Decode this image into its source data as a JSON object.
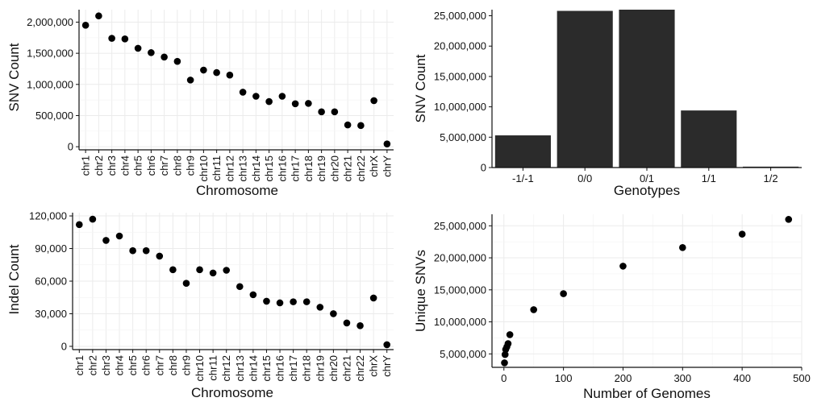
{
  "colors": {
    "marks": "#000000",
    "bars": "#2b2b2b",
    "axis": "#111111",
    "grid": "#ebebeb"
  },
  "chart_data": [
    {
      "id": "snv-by-chromosome",
      "type": "scatter",
      "title": "",
      "xlabel": "Chromosome",
      "ylabel": "SNV Count",
      "categories": [
        "chr1",
        "chr2",
        "chr3",
        "chr4",
        "chr5",
        "chr6",
        "chr7",
        "chr8",
        "chr9",
        "chr10",
        "chr11",
        "chr12",
        "chr13",
        "chr14",
        "chr15",
        "chr16",
        "chr17",
        "chr18",
        "chr19",
        "chr20",
        "chr21",
        "chr22",
        "chrX",
        "chrY"
      ],
      "values": [
        1950000,
        2100000,
        1740000,
        1730000,
        1580000,
        1510000,
        1440000,
        1370000,
        1070000,
        1230000,
        1190000,
        1150000,
        875000,
        810000,
        725000,
        810000,
        690000,
        695000,
        560000,
        560000,
        350000,
        340000,
        740000,
        45000
      ],
      "ylim": [
        -50000,
        2200000
      ],
      "yticks": [
        0,
        500000,
        1000000,
        1500000,
        2000000
      ],
      "ytick_labels": [
        "0",
        "500,000",
        "1,000,000",
        "1,500,000",
        "2,000,000"
      ],
      "grid": true
    },
    {
      "id": "snv-by-genotype",
      "type": "bar",
      "title": "",
      "xlabel": "Genotypes",
      "ylabel": "SNV Count",
      "categories": [
        "-1/-1",
        "0/0",
        "0/1",
        "1/1",
        "1/2"
      ],
      "values": [
        5300000,
        25800000,
        26000000,
        9400000,
        150000
      ],
      "ylim": [
        0,
        26000000
      ],
      "yticks": [
        0,
        5000000,
        10000000,
        15000000,
        20000000,
        25000000
      ],
      "ytick_labels": [
        "0",
        "5,000,000",
        "10,000,000",
        "15,000,000",
        "20,000,000",
        "25,000,000"
      ],
      "grid": false
    },
    {
      "id": "indel-by-chromosome",
      "type": "scatter",
      "title": "",
      "xlabel": "Chromosome",
      "ylabel": "Indel Count",
      "categories": [
        "chr1",
        "chr2",
        "chr3",
        "chr4",
        "chr5",
        "chr6",
        "chr7",
        "chr8",
        "chr9",
        "chr10",
        "chr11",
        "chr12",
        "chr13",
        "chr14",
        "chr15",
        "chr16",
        "chr17",
        "chr18",
        "chr19",
        "chr20",
        "chr21",
        "chr22",
        "chrX",
        "chrY"
      ],
      "values": [
        112000,
        117000,
        97500,
        101500,
        88000,
        88000,
        83000,
        70500,
        58000,
        70500,
        67500,
        70000,
        55000,
        47500,
        41500,
        40000,
        41000,
        41000,
        36000,
        30000,
        21500,
        19000,
        44500,
        1500
      ],
      "ylim": [
        -3000,
        123000
      ],
      "yticks": [
        0,
        30000,
        60000,
        90000,
        120000
      ],
      "ytick_labels": [
        "0",
        "30,000",
        "60,000",
        "90,000",
        "120,000"
      ],
      "grid": true
    },
    {
      "id": "unique-snvs-by-genomes",
      "type": "scatter",
      "title": "",
      "xlabel": "Number of Genomes",
      "ylabel": "Unique SNVs",
      "x": [
        1,
        2,
        3,
        5,
        7,
        10,
        50,
        100,
        200,
        300,
        400,
        478
      ],
      "values": [
        3600000,
        4900000,
        5700000,
        6100000,
        6600000,
        8000000,
        11900000,
        14400000,
        18700000,
        21600000,
        23700000,
        26000000
      ],
      "xlim": [
        -20,
        500
      ],
      "xticks": [
        0,
        100,
        200,
        300,
        400,
        500
      ],
      "xtick_labels": [
        "0",
        "100",
        "200",
        "300",
        "400",
        "500"
      ],
      "ylim": [
        2900000,
        26800000
      ],
      "yticks": [
        5000000,
        10000000,
        15000000,
        20000000,
        25000000
      ],
      "ytick_labels": [
        "5,000,000",
        "10,000,000",
        "15,000,000",
        "20,000,000",
        "25,000,000"
      ],
      "grid": true
    }
  ]
}
